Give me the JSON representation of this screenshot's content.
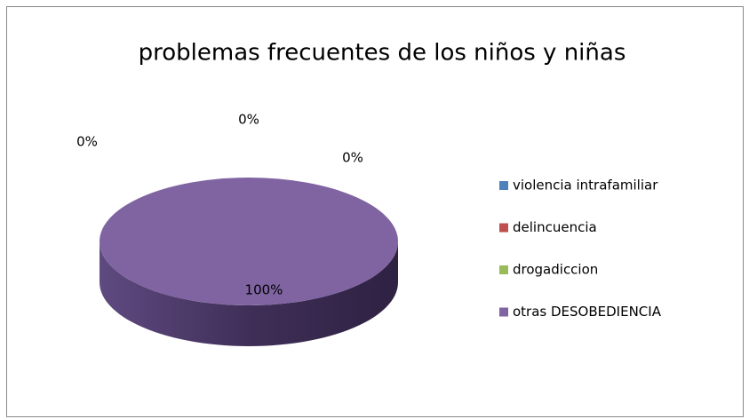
{
  "chart_data": {
    "type": "pie",
    "title": "problemas frecuentes de los niños y niñas",
    "categories": [
      "violencia intrafamiliar",
      "delincuencia",
      "drogadiccion",
      "otras DESOBEDIENCIA"
    ],
    "values": [
      0,
      0,
      0,
      100
    ],
    "value_labels": [
      "0%",
      "0%",
      "0%",
      "100%"
    ],
    "colors": [
      "#4f81bd",
      "#c0504d",
      "#9bbb59",
      "#8064a2"
    ],
    "legend": "right"
  }
}
